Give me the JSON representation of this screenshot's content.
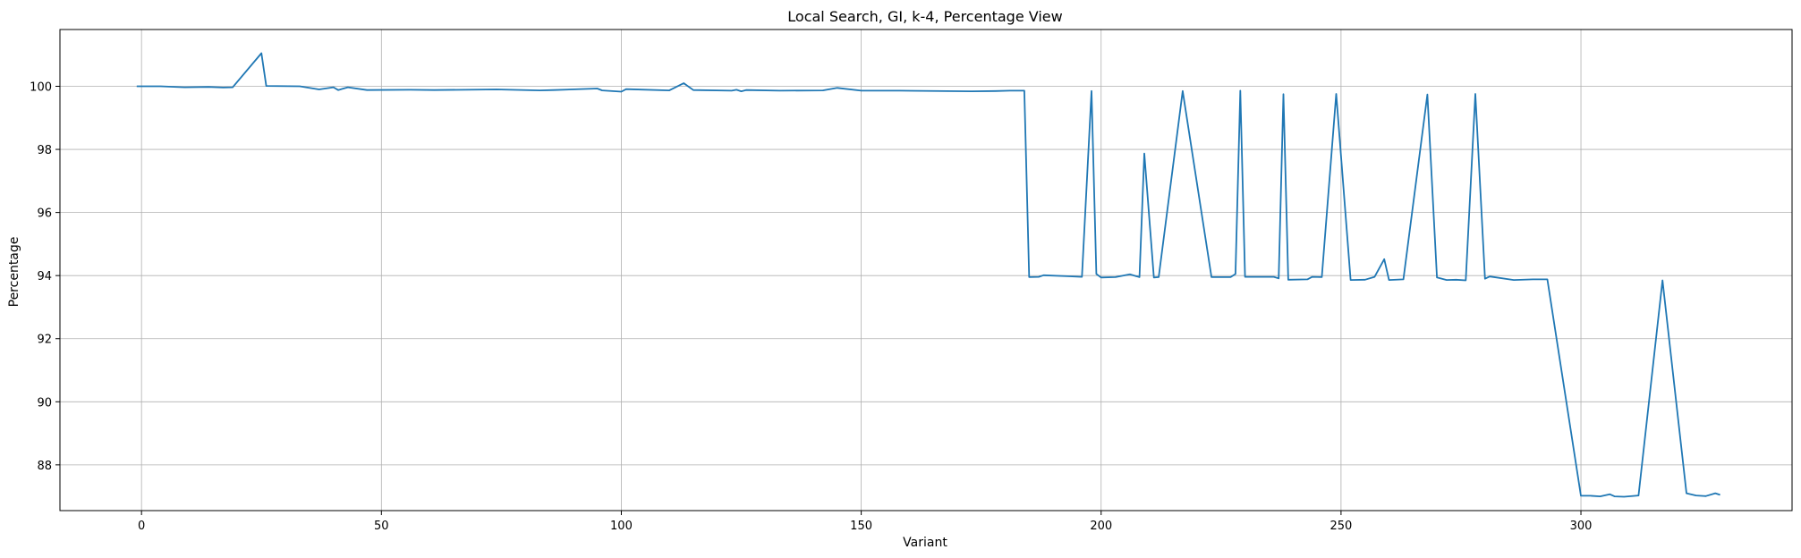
{
  "chart_data": {
    "type": "line",
    "title": "Local Search, GI, k-4, Percentage View",
    "xlabel": "Variant",
    "ylabel": "Percentage",
    "xlim": [
      -17,
      344
    ],
    "ylim": [
      86.55,
      101.8
    ],
    "xticks": [
      0,
      50,
      100,
      150,
      200,
      250,
      300
    ],
    "yticks": [
      88,
      90,
      92,
      94,
      96,
      98,
      100
    ],
    "grid": true,
    "line_color": "#1f77b4",
    "series": [
      {
        "x": [
          -1,
          4,
          9,
          14,
          17,
          19,
          25,
          26,
          33,
          37,
          40,
          41,
          43,
          47,
          56,
          61,
          74,
          83,
          86,
          95,
          96,
          100,
          101,
          110,
          113,
          115,
          123,
          124,
          125,
          126,
          133,
          142,
          145,
          150,
          158,
          173,
          178,
          181,
          184,
          185,
          187,
          188,
          193,
          196,
          198,
          199,
          200,
          203,
          206,
          208,
          209,
          211,
          212,
          217,
          223,
          225,
          227,
          228,
          229,
          230,
          236,
          237,
          238,
          239,
          243,
          244,
          246,
          249,
          252,
          255,
          257,
          259,
          260,
          263,
          268,
          270,
          272,
          274,
          276,
          278,
          280,
          281,
          286,
          290,
          293,
          300,
          302,
          304,
          306,
          307,
          309,
          312,
          317,
          322,
          324,
          326,
          328,
          329
        ],
        "y": [
          100.0,
          100.0,
          99.97,
          99.98,
          99.96,
          99.97,
          101.05,
          100.01,
          100.0,
          99.9,
          99.97,
          99.88,
          99.97,
          99.88,
          99.89,
          99.88,
          99.9,
          99.87,
          99.88,
          99.93,
          99.87,
          99.83,
          99.91,
          99.87,
          100.1,
          99.88,
          99.86,
          99.89,
          99.84,
          99.88,
          99.86,
          99.87,
          99.95,
          99.86,
          99.86,
          99.84,
          99.85,
          99.86,
          99.86,
          93.95,
          93.96,
          94.01,
          93.98,
          93.96,
          99.85,
          94.05,
          93.94,
          93.95,
          94.04,
          93.95,
          97.87,
          93.94,
          93.95,
          99.85,
          93.95,
          93.95,
          93.95,
          94.05,
          99.86,
          93.96,
          93.96,
          93.91,
          99.75,
          93.87,
          93.88,
          93.96,
          93.95,
          99.76,
          93.86,
          93.87,
          93.96,
          94.52,
          93.86,
          93.88,
          99.74,
          93.94,
          93.86,
          93.87,
          93.85,
          99.76,
          93.9,
          93.97,
          93.86,
          93.88,
          93.88,
          87.02,
          87.02,
          87.0,
          87.07,
          87.0,
          86.99,
          87.03,
          93.85,
          87.1,
          87.03,
          87.01,
          87.1,
          87.05
        ]
      }
    ]
  }
}
